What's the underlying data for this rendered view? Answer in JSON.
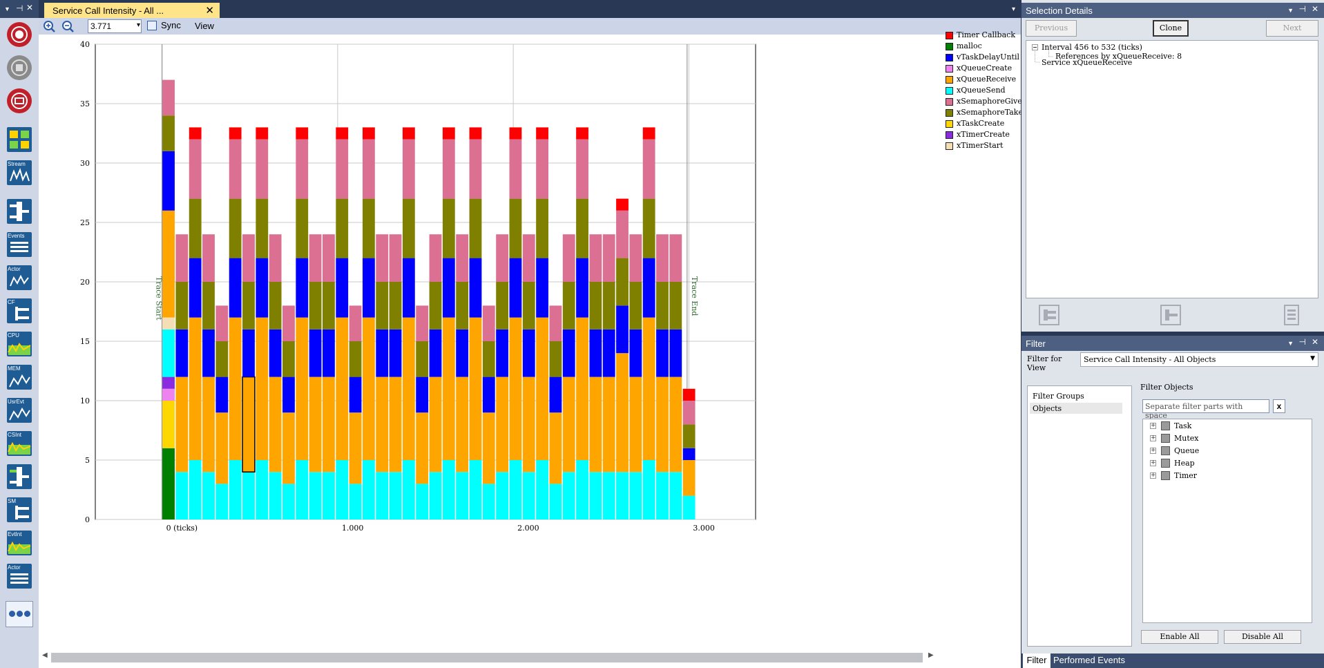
{
  "document_tab": {
    "title": "Service Call Intensity - All ...",
    "close": "✕",
    "dropdown": "▾"
  },
  "toolbar": {
    "zoom_value": "3.771",
    "zoom_dropdown": "▾",
    "sync_label": "Sync",
    "view_label": "View",
    "tiles": [
      "Stream",
      "Events",
      "Actor",
      "CF",
      "CPU",
      "MEM",
      "UsrEvt",
      "CSInt",
      "SM",
      "EvtInt",
      "Actor"
    ]
  },
  "colors": {
    "Timer Callback": "#ff0000",
    "malloc": "#008000",
    "vTaskDelayUntil": "#0000ff",
    "xQueueCreate": "#ee82ee",
    "xQueueReceive": "#ffa500",
    "xQueueSend": "#00ffff",
    "xSemaphoreGive": "#db7093",
    "xSemaphoreTake": "#808000",
    "xTaskCreate": "#ffd700",
    "xTimerCreate": "#8a2be2",
    "xTimerStart": "#f5deb3"
  },
  "chart_data": {
    "type": "bar",
    "stacked": true,
    "ylim": [
      0,
      40
    ],
    "yticks": [
      0,
      5,
      10,
      15,
      20,
      25,
      30,
      35,
      40
    ],
    "xticks": [
      {
        "value": 0,
        "label": "0 (ticks)"
      },
      {
        "value": 1000,
        "label": "1.000"
      },
      {
        "value": 2000,
        "label": "2.000"
      },
      {
        "value": 3000,
        "label": "3.000"
      }
    ],
    "x_range": [
      -380,
      3380
    ],
    "markers": [
      {
        "x": 0,
        "label": "Trace Start"
      },
      {
        "x": 2990,
        "label": "Trace End"
      }
    ],
    "bar_width": 76,
    "selected_bar": 6,
    "selected_series": "xQueueReceive",
    "legend_position": "right",
    "legend": [
      "Timer Callback",
      "malloc",
      "vTaskDelayUntil",
      "xQueueCreate",
      "xQueueReceive",
      "xQueueSend",
      "xSemaphoreGive",
      "xSemaphoreTake",
      "xTaskCreate",
      "xTimerCreate",
      "xTimerStart"
    ],
    "bars": [
      {
        "x": 0,
        "segments": {
          "malloc": 6,
          "xTaskCreate": 4,
          "xQueueCreate": 1,
          "xTimerCreate": 1,
          "xQueueSend": 4,
          "xTimerStart": 1,
          "xQueueReceive": 9,
          "vTaskDelayUntil": 5,
          "xSemaphoreTake": 3,
          "xSemaphoreGive": 3
        }
      },
      {
        "x": 76,
        "segments": {
          "xQueueSend": 4,
          "xQueueReceive": 8,
          "vTaskDelayUntil": 4,
          "xSemaphoreTake": 4,
          "xSemaphoreGive": 4
        }
      },
      {
        "x": 152,
        "segments": {
          "xQueueSend": 5,
          "xQueueReceive": 12,
          "vTaskDelayUntil": 5,
          "xSemaphoreTake": 5,
          "xSemaphoreGive": 5,
          "Timer Callback": 1
        }
      },
      {
        "x": 228,
        "segments": {
          "xQueueSend": 4,
          "xQueueReceive": 8,
          "vTaskDelayUntil": 4,
          "xSemaphoreTake": 4,
          "xSemaphoreGive": 4
        }
      },
      {
        "x": 304,
        "segments": {
          "xQueueSend": 3,
          "xQueueReceive": 6,
          "vTaskDelayUntil": 3,
          "xSemaphoreTake": 3,
          "xSemaphoreGive": 3
        }
      },
      {
        "x": 380,
        "segments": {
          "xQueueSend": 5,
          "xQueueReceive": 12,
          "vTaskDelayUntil": 5,
          "xSemaphoreTake": 5,
          "xSemaphoreGive": 5,
          "Timer Callback": 1
        }
      },
      {
        "x": 456,
        "segments": {
          "xQueueSend": 4,
          "xQueueReceive": 8,
          "vTaskDelayUntil": 4,
          "xSemaphoreTake": 4,
          "xSemaphoreGive": 4
        }
      },
      {
        "x": 532,
        "segments": {
          "xQueueSend": 5,
          "xQueueReceive": 12,
          "vTaskDelayUntil": 5,
          "xSemaphoreTake": 5,
          "xSemaphoreGive": 5,
          "Timer Callback": 1
        }
      },
      {
        "x": 608,
        "segments": {
          "xQueueSend": 4,
          "xQueueReceive": 8,
          "vTaskDelayUntil": 4,
          "xSemaphoreTake": 4,
          "xSemaphoreGive": 4
        }
      },
      {
        "x": 684,
        "segments": {
          "xQueueSend": 3,
          "xQueueReceive": 6,
          "vTaskDelayUntil": 3,
          "xSemaphoreTake": 3,
          "xSemaphoreGive": 3
        }
      },
      {
        "x": 760,
        "segments": {
          "xQueueSend": 5,
          "xQueueReceive": 12,
          "vTaskDelayUntil": 5,
          "xSemaphoreTake": 5,
          "xSemaphoreGive": 5,
          "Timer Callback": 1
        }
      },
      {
        "x": 836,
        "segments": {
          "xQueueSend": 4,
          "xQueueReceive": 8,
          "vTaskDelayUntil": 4,
          "xSemaphoreTake": 4,
          "xSemaphoreGive": 4
        }
      },
      {
        "x": 912,
        "segments": {
          "xQueueSend": 4,
          "xQueueReceive": 8,
          "vTaskDelayUntil": 4,
          "xSemaphoreTake": 4,
          "xSemaphoreGive": 4
        }
      },
      {
        "x": 988,
        "segments": {
          "xQueueSend": 5,
          "xQueueReceive": 12,
          "vTaskDelayUntil": 5,
          "xSemaphoreTake": 5,
          "xSemaphoreGive": 5,
          "Timer Callback": 1
        }
      },
      {
        "x": 1064,
        "segments": {
          "xQueueSend": 3,
          "xQueueReceive": 6,
          "vTaskDelayUntil": 3,
          "xSemaphoreTake": 3,
          "xSemaphoreGive": 3
        }
      },
      {
        "x": 1140,
        "segments": {
          "xQueueSend": 5,
          "xQueueReceive": 12,
          "vTaskDelayUntil": 5,
          "xSemaphoreTake": 5,
          "xSemaphoreGive": 5,
          "Timer Callback": 1
        }
      },
      {
        "x": 1216,
        "segments": {
          "xQueueSend": 4,
          "xQueueReceive": 8,
          "vTaskDelayUntil": 4,
          "xSemaphoreTake": 4,
          "xSemaphoreGive": 4
        }
      },
      {
        "x": 1292,
        "segments": {
          "xQueueSend": 4,
          "xQueueReceive": 8,
          "vTaskDelayUntil": 4,
          "xSemaphoreTake": 4,
          "xSemaphoreGive": 4
        }
      },
      {
        "x": 1368,
        "segments": {
          "xQueueSend": 5,
          "xQueueReceive": 12,
          "vTaskDelayUntil": 5,
          "xSemaphoreTake": 5,
          "xSemaphoreGive": 5,
          "Timer Callback": 1
        }
      },
      {
        "x": 1444,
        "segments": {
          "xQueueSend": 3,
          "xQueueReceive": 6,
          "vTaskDelayUntil": 3,
          "xSemaphoreTake": 3,
          "xSemaphoreGive": 3
        }
      },
      {
        "x": 1520,
        "segments": {
          "xQueueSend": 4,
          "xQueueReceive": 8,
          "vTaskDelayUntil": 4,
          "xSemaphoreTake": 4,
          "xSemaphoreGive": 4
        }
      },
      {
        "x": 1596,
        "segments": {
          "xQueueSend": 5,
          "xQueueReceive": 12,
          "vTaskDelayUntil": 5,
          "xSemaphoreTake": 5,
          "xSemaphoreGive": 5,
          "Timer Callback": 1
        }
      },
      {
        "x": 1672,
        "segments": {
          "xQueueSend": 4,
          "xQueueReceive": 8,
          "vTaskDelayUntil": 4,
          "xSemaphoreTake": 4,
          "xSemaphoreGive": 4
        }
      },
      {
        "x": 1748,
        "segments": {
          "xQueueSend": 5,
          "xQueueReceive": 12,
          "vTaskDelayUntil": 5,
          "xSemaphoreTake": 5,
          "xSemaphoreGive": 5,
          "Timer Callback": 1
        }
      },
      {
        "x": 1824,
        "segments": {
          "xQueueSend": 3,
          "xQueueReceive": 6,
          "vTaskDelayUntil": 3,
          "xSemaphoreTake": 3,
          "xSemaphoreGive": 3
        }
      },
      {
        "x": 1900,
        "segments": {
          "xQueueSend": 4,
          "xQueueReceive": 8,
          "vTaskDelayUntil": 4,
          "xSemaphoreTake": 4,
          "xSemaphoreGive": 4
        }
      },
      {
        "x": 1976,
        "segments": {
          "xQueueSend": 5,
          "xQueueReceive": 12,
          "vTaskDelayUntil": 5,
          "xSemaphoreTake": 5,
          "xSemaphoreGive": 5,
          "Timer Callback": 1
        }
      },
      {
        "x": 2052,
        "segments": {
          "xQueueSend": 4,
          "xQueueReceive": 8,
          "vTaskDelayUntil": 4,
          "xSemaphoreTake": 4,
          "xSemaphoreGive": 4
        }
      },
      {
        "x": 2128,
        "segments": {
          "xQueueSend": 5,
          "xQueueReceive": 12,
          "vTaskDelayUntil": 5,
          "xSemaphoreTake": 5,
          "xSemaphoreGive": 5,
          "Timer Callback": 1
        }
      },
      {
        "x": 2204,
        "segments": {
          "xQueueSend": 3,
          "xQueueReceive": 6,
          "vTaskDelayUntil": 3,
          "xSemaphoreTake": 3,
          "xSemaphoreGive": 3
        }
      },
      {
        "x": 2280,
        "segments": {
          "xQueueSend": 4,
          "xQueueReceive": 8,
          "vTaskDelayUntil": 4,
          "xSemaphoreTake": 4,
          "xSemaphoreGive": 4
        }
      },
      {
        "x": 2356,
        "segments": {
          "xQueueSend": 5,
          "xQueueReceive": 12,
          "vTaskDelayUntil": 5,
          "xSemaphoreTake": 5,
          "xSemaphoreGive": 5,
          "Timer Callback": 1
        }
      },
      {
        "x": 2432,
        "segments": {
          "xQueueSend": 4,
          "xQueueReceive": 8,
          "vTaskDelayUntil": 4,
          "xSemaphoreTake": 4,
          "xSemaphoreGive": 4
        }
      },
      {
        "x": 2508,
        "segments": {
          "xQueueSend": 4,
          "xQueueReceive": 8,
          "vTaskDelayUntil": 4,
          "xSemaphoreTake": 4,
          "xSemaphoreGive": 4
        }
      },
      {
        "x": 2584,
        "segments": {
          "xQueueSend": 4,
          "xQueueReceive": 10,
          "vTaskDelayUntil": 4,
          "xSemaphoreTake": 4,
          "xSemaphoreGive": 4,
          "Timer Callback": 1
        }
      },
      {
        "x": 2660,
        "segments": {
          "xQueueSend": 4,
          "xQueueReceive": 8,
          "vTaskDelayUntil": 4,
          "xSemaphoreTake": 4,
          "xSemaphoreGive": 4
        }
      },
      {
        "x": 2736,
        "segments": {
          "xQueueSend": 5,
          "xQueueReceive": 12,
          "vTaskDelayUntil": 5,
          "xSemaphoreTake": 5,
          "xSemaphoreGive": 5,
          "Timer Callback": 1
        }
      },
      {
        "x": 2812,
        "segments": {
          "xQueueSend": 4,
          "xQueueReceive": 8,
          "vTaskDelayUntil": 4,
          "xSemaphoreTake": 4,
          "xSemaphoreGive": 4
        }
      },
      {
        "x": 2888,
        "segments": {
          "xQueueSend": 4,
          "xQueueReceive": 8,
          "vTaskDelayUntil": 4,
          "xSemaphoreTake": 4,
          "xSemaphoreGive": 4
        }
      },
      {
        "x": 2964,
        "segments": {
          "xQueueSend": 2,
          "xQueueReceive": 3,
          "vTaskDelayUntil": 1,
          "xSemaphoreTake": 2,
          "xSemaphoreGive": 2,
          "Timer Callback": 1
        }
      }
    ]
  },
  "selection_panel": {
    "title": "Selection Details",
    "previous": "Previous",
    "clone": "Clone",
    "next": "Next",
    "tree": {
      "interval": "Interval 456 to 532 (ticks)",
      "references": "References by xQueueReceive: 8",
      "service": "Service xQueueReceive"
    }
  },
  "filter_panel": {
    "title": "Filter",
    "filter_for_view_label": "Filter for\nView",
    "filter_for_view_value": "Service Call Intensity - All Objects",
    "groups": [
      "Filter Groups",
      "Objects"
    ],
    "objects_title": "Filter Objects",
    "search_placeholder": "Separate filter parts with space",
    "clear": "x",
    "objects": [
      "Task",
      "Mutex",
      "Queue",
      "Heap",
      "Timer"
    ],
    "enable_all": "Enable All",
    "disable_all": "Disable All"
  },
  "bottom_tabs": {
    "filter": "Filter",
    "events": "Performed Events"
  }
}
